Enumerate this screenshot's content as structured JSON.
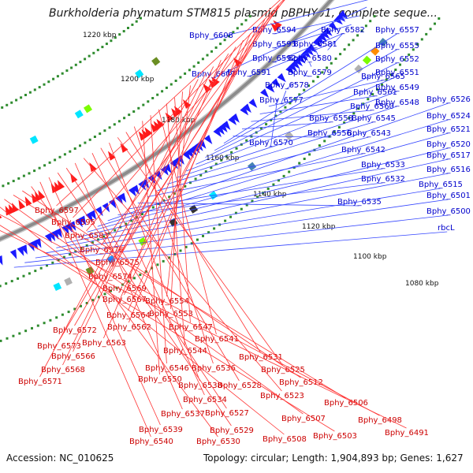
{
  "title": "Burkholderia phymatum STM815 plasmid pBPHY01, complete seque...",
  "accession": "Accession: NC_010625",
  "summary": "Topology: circular; Length: 1,904,893 bp; Genes: 1,627",
  "colors": {
    "backbone": "#8c8c8c",
    "forward_gene": "#1a1aff",
    "reverse_gene": "#ff1a1a",
    "forward_label": "#0000cc",
    "reverse_label": "#cc0000",
    "tick_dots": "#2e8b2e"
  },
  "scale_marks": [
    "1220 kbp",
    "1200 kbp",
    "1180 kbp",
    "1160 kbp",
    "1140 kbp",
    "1120 kbp",
    "1100 kbp",
    "1080 kbp"
  ],
  "forward_genes": [
    "Bphy_6608",
    "Bphy_6602",
    "Bphy_6594",
    "Bphy_6593",
    "Bphy_6592",
    "Bphy_6591",
    "Bphy_6582",
    "Bphy_6581",
    "Bphy_6580",
    "Bphy_6579",
    "Bphy_6578",
    "Bphy_6577",
    "Bphy_6570",
    "Bphy_6565",
    "Bphy_6561",
    "Bphy_6560",
    "Bphy_6558",
    "Bphy_6556",
    "Bphy_6557",
    "Bphy_6555",
    "Bphy_6552",
    "Bphy_6551",
    "Bphy_6549",
    "Bphy_6548",
    "Bphy_6545",
    "Bphy_6543",
    "Bphy_6542",
    "Bphy_6535",
    "Bphy_6533",
    "Bphy_6532",
    "Bphy_6526",
    "Bphy_6524",
    "Bphy_6521",
    "Bphy_6520",
    "Bphy_6517",
    "Bphy_6516",
    "Bphy_6515",
    "Bphy_6501",
    "Bphy_6500",
    "rbcL"
  ],
  "reverse_genes": [
    "Bphy_6597",
    "Bphy_6595",
    "Bphy_6583",
    "Bphy_6576",
    "Bphy_6575",
    "Bphy_6574",
    "Bphy_6569",
    "Bphy_6567",
    "Bphy_6564",
    "Bphy_6562",
    "Bphy_6572",
    "Bphy_6573",
    "Bphy_6563",
    "Bphy_6566",
    "Bphy_6568",
    "Bphy_6571",
    "Bphy_6554",
    "Bphy_6553",
    "Bphy_6547",
    "Bphy_6544",
    "Bphy_6541",
    "Bphy_6546",
    "Bphy_6550",
    "Bphy_6536",
    "Bphy_6531",
    "Bphy_6525",
    "Bphy_6538",
    "Bphy_6528",
    "Bphy_6534",
    "Bphy_6523",
    "Bphy_6537",
    "Bphy_6527",
    "Bphy_6529",
    "Bphy_6539",
    "Bphy_6540",
    "Bphy_6530",
    "Bphy_6512",
    "Bphy_6506",
    "Bphy_6507",
    "Bphy_6508",
    "Bphy_6498",
    "Bphy_6503",
    "Bphy_6491"
  ]
}
